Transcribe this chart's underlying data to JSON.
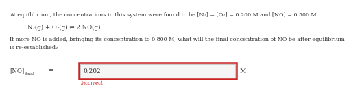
{
  "background_color": "#ffffff",
  "text_line1": "At equilibrium, the concentrations in this system were found to be [N₂] = [O₂] = 0.200 M and [NO] = 0.500 M.",
  "text_line2": "N₂(g) + O₂(g) ⇌ 2 NO(g)",
  "text_line3": "If more NO is added, bringing its concentration to 0.800 M, what will the final concentration of NO be after equilibrium",
  "text_line4": "is re-established?",
  "label_text": "[NO]",
  "label_sub": "final",
  "input_value": "0.202",
  "unit": "M",
  "incorrect_text": "Incorrect",
  "input_box_facecolor": "#e8e8e8",
  "input_box_edgecolor": "#cc2222",
  "inner_box_facecolor": "#f5f5f5",
  "inner_box_edgecolor": "#bbbbbb",
  "incorrect_color": "#cc1111",
  "main_text_color": "#333333",
  "label_color": "#333333",
  "fontsize_main": 5.8,
  "fontsize_equation": 6.2,
  "fontsize_input": 6.5,
  "fontsize_incorrect": 5.0,
  "fontsize_unit": 6.5,
  "fontsize_label": 6.2,
  "fontsize_label_sub": 4.5
}
